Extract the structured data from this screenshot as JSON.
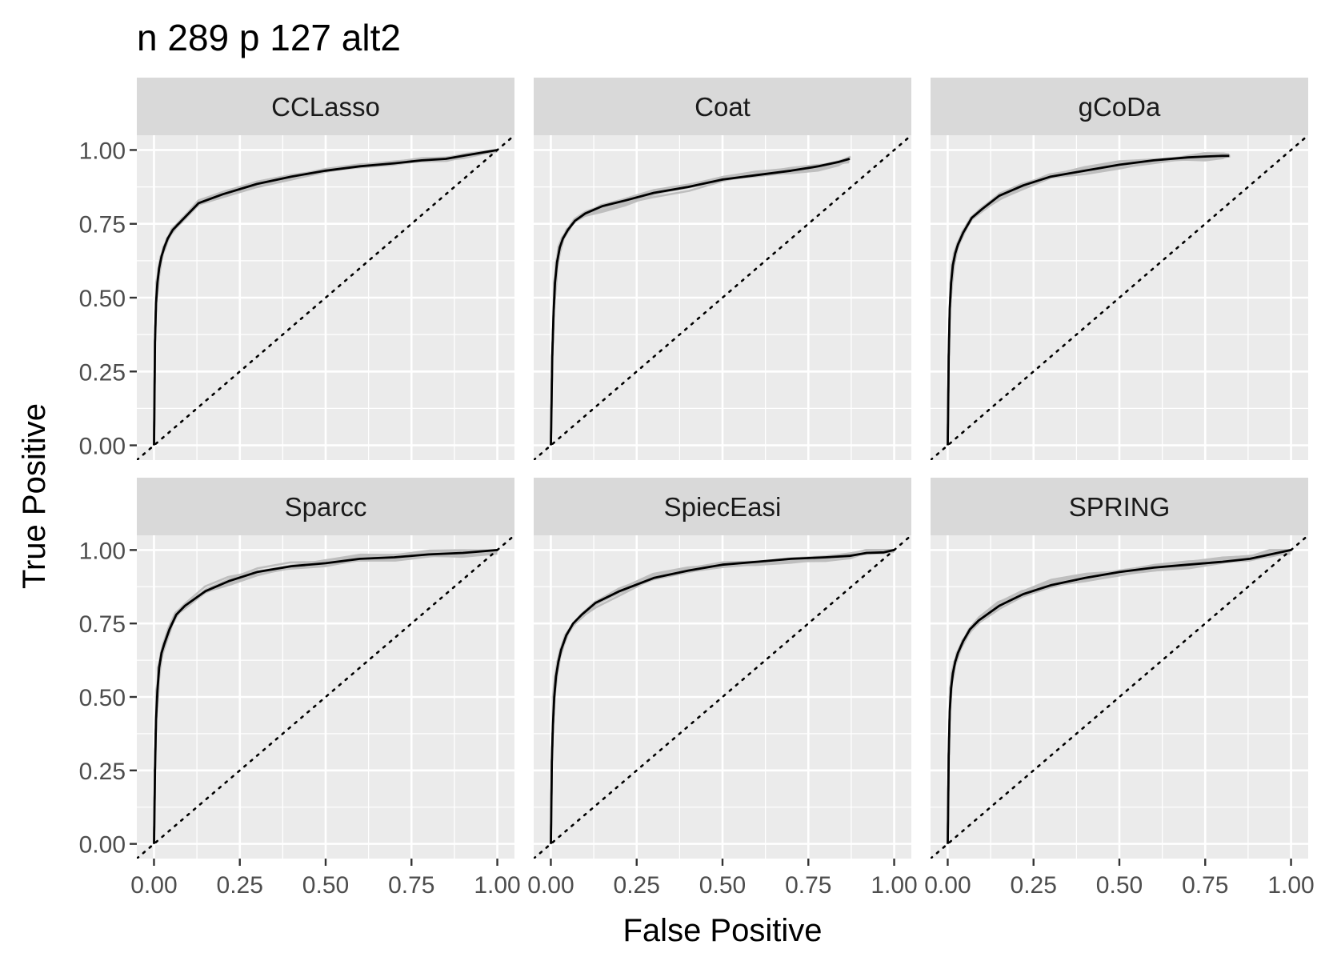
{
  "chart_data": {
    "type": "line",
    "title": "n 289 p 127 alt2",
    "xlabel": "False Positive",
    "ylabel": "True Positive",
    "xlim": [
      -0.05,
      1.05
    ],
    "ylim": [
      -0.05,
      1.05
    ],
    "x_ticks": [
      "0.00",
      "0.25",
      "0.50",
      "0.75",
      "1.00"
    ],
    "y_ticks": [
      "0.00",
      "0.25",
      "0.50",
      "0.75",
      "1.00"
    ],
    "grid": true,
    "reference_line": "diagonal y = x, dotted",
    "colors": {
      "mean_curve": "#000000",
      "replicate_curves": "#bebebe",
      "panel_background": "#ebebeb",
      "strip_background": "#d9d9d9",
      "grid": "#ffffff"
    },
    "panels": [
      {
        "name": "CCLasso",
        "mean": {
          "x": [
            0.0,
            0.003,
            0.006,
            0.01,
            0.015,
            0.022,
            0.03,
            0.04,
            0.055,
            0.08,
            0.13,
            0.2,
            0.3,
            0.4,
            0.5,
            0.6,
            0.7,
            0.78,
            0.85,
            0.9,
            0.95,
            1.0
          ],
          "y": [
            0.0,
            0.35,
            0.48,
            0.55,
            0.6,
            0.64,
            0.67,
            0.7,
            0.73,
            0.76,
            0.82,
            0.85,
            0.885,
            0.91,
            0.93,
            0.945,
            0.955,
            0.965,
            0.97,
            0.98,
            0.99,
            1.0
          ]
        }
      },
      {
        "name": "Coat",
        "mean": {
          "x": [
            0.0,
            0.004,
            0.008,
            0.012,
            0.018,
            0.026,
            0.035,
            0.05,
            0.07,
            0.1,
            0.15,
            0.22,
            0.3,
            0.4,
            0.5,
            0.6,
            0.7,
            0.78,
            0.84,
            0.87
          ],
          "y": [
            0.0,
            0.3,
            0.45,
            0.55,
            0.62,
            0.67,
            0.7,
            0.73,
            0.76,
            0.785,
            0.81,
            0.83,
            0.855,
            0.875,
            0.9,
            0.915,
            0.93,
            0.945,
            0.96,
            0.97
          ]
        }
      },
      {
        "name": "gCoDa",
        "mean": {
          "x": [
            0.0,
            0.003,
            0.006,
            0.01,
            0.015,
            0.022,
            0.03,
            0.045,
            0.07,
            0.1,
            0.15,
            0.22,
            0.3,
            0.4,
            0.5,
            0.6,
            0.7,
            0.75,
            0.8,
            0.82
          ],
          "y": [
            0.0,
            0.3,
            0.46,
            0.55,
            0.61,
            0.65,
            0.68,
            0.72,
            0.77,
            0.8,
            0.845,
            0.88,
            0.91,
            0.93,
            0.95,
            0.965,
            0.975,
            0.978,
            0.98,
            0.98
          ]
        }
      },
      {
        "name": "Sparcc",
        "mean": {
          "x": [
            0.0,
            0.003,
            0.006,
            0.01,
            0.015,
            0.022,
            0.03,
            0.045,
            0.065,
            0.09,
            0.15,
            0.22,
            0.3,
            0.4,
            0.5,
            0.6,
            0.7,
            0.8,
            0.9,
            1.0
          ],
          "y": [
            0.0,
            0.25,
            0.42,
            0.52,
            0.6,
            0.65,
            0.68,
            0.73,
            0.78,
            0.81,
            0.86,
            0.895,
            0.925,
            0.945,
            0.955,
            0.97,
            0.975,
            0.985,
            0.99,
            1.0
          ]
        }
      },
      {
        "name": "SpiecEasi",
        "mean": {
          "x": [
            0.0,
            0.003,
            0.006,
            0.01,
            0.015,
            0.022,
            0.03,
            0.045,
            0.065,
            0.09,
            0.13,
            0.2,
            0.3,
            0.4,
            0.5,
            0.6,
            0.7,
            0.8,
            0.87,
            0.92,
            0.97,
            1.0
          ],
          "y": [
            0.0,
            0.28,
            0.4,
            0.5,
            0.57,
            0.62,
            0.66,
            0.71,
            0.75,
            0.78,
            0.82,
            0.86,
            0.905,
            0.93,
            0.95,
            0.96,
            0.97,
            0.975,
            0.98,
            0.99,
            0.992,
            1.0
          ]
        }
      },
      {
        "name": "SPRING",
        "mean": {
          "x": [
            0.0,
            0.003,
            0.006,
            0.01,
            0.015,
            0.022,
            0.03,
            0.045,
            0.065,
            0.09,
            0.15,
            0.22,
            0.3,
            0.4,
            0.5,
            0.6,
            0.7,
            0.8,
            0.88,
            0.94,
            1.0
          ],
          "y": [
            0.0,
            0.3,
            0.45,
            0.53,
            0.58,
            0.62,
            0.65,
            0.69,
            0.73,
            0.76,
            0.81,
            0.85,
            0.88,
            0.905,
            0.925,
            0.94,
            0.95,
            0.96,
            0.97,
            0.985,
            1.0
          ]
        }
      }
    ]
  }
}
